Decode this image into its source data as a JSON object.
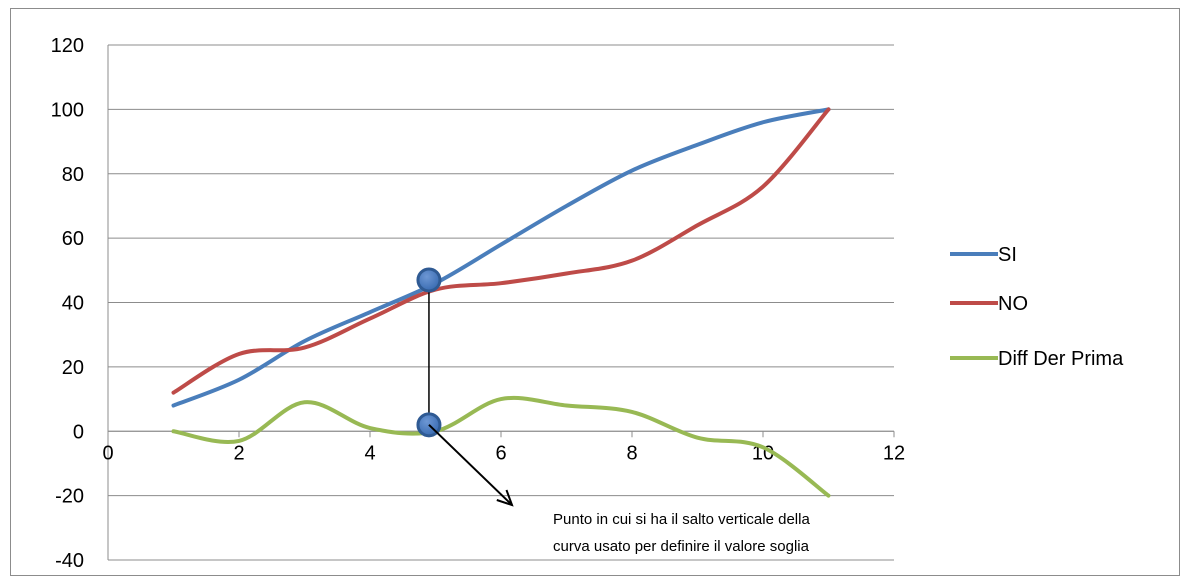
{
  "chart_data": {
    "type": "line",
    "xlim": [
      0,
      12
    ],
    "ylim": [
      -40,
      120
    ],
    "x_ticks": [
      "0",
      "2",
      "4",
      "6",
      "8",
      "10",
      "12"
    ],
    "y_ticks": [
      "120",
      "100",
      "80",
      "60",
      "40",
      "20",
      "0",
      "-20",
      "-40"
    ],
    "grid": "horizontal",
    "legend_position": "right",
    "series": [
      {
        "name": "SI",
        "color": "#4a7ebb",
        "x": [
          1,
          2,
          3,
          4,
          5,
          6,
          7,
          8,
          9,
          10,
          11
        ],
        "y": [
          8,
          16,
          28,
          37,
          46,
          58,
          70,
          81,
          89,
          96,
          100
        ]
      },
      {
        "name": "NO",
        "color": "#be4b48",
        "x": [
          1,
          2,
          3,
          4,
          5,
          6,
          7,
          8,
          9,
          10,
          11
        ],
        "y": [
          12,
          24,
          26,
          35,
          44,
          46,
          49,
          53,
          64,
          76,
          100
        ]
      },
      {
        "name": "Diff Der Prima",
        "color": "#98b954",
        "x": [
          1,
          2,
          3,
          4,
          5,
          6,
          7,
          8,
          9,
          10,
          11
        ],
        "y": [
          0,
          -3,
          9,
          1,
          0,
          10,
          8,
          6,
          -2,
          -5,
          -20
        ]
      }
    ],
    "markers": [
      {
        "x": 4.9,
        "y": 47
      },
      {
        "x": 4.9,
        "y": 2
      }
    ],
    "annotation": {
      "line1": "Punto in cui si ha il salto verticale della",
      "line2": "curva usato per definire il valore soglia"
    }
  }
}
